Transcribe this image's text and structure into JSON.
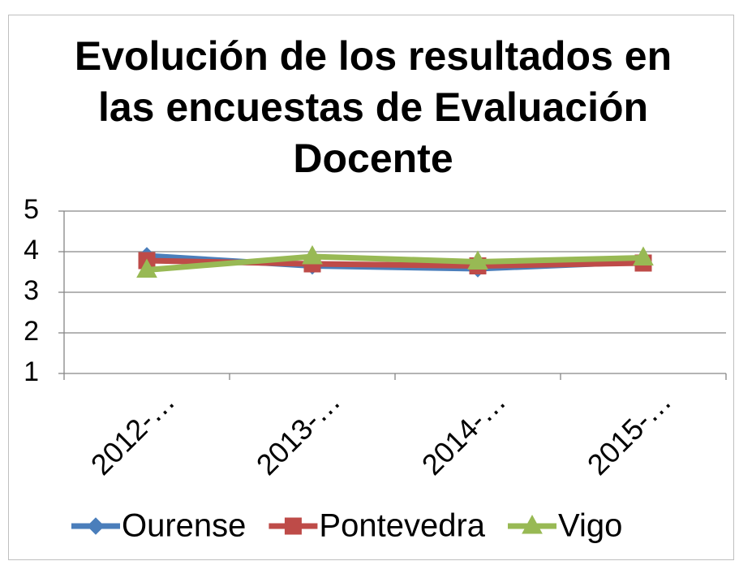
{
  "chart_data": {
    "type": "line",
    "title": "Evolución de los resultados en las encuestas de Evaluación Docente",
    "categories": [
      "2012-…",
      "2013-…",
      "2014-…",
      "2015-…"
    ],
    "series": [
      {
        "name": "Ourense",
        "color": "#4a7ebb",
        "marker": "diamond",
        "values": [
          3.9,
          3.65,
          3.58,
          3.75
        ]
      },
      {
        "name": "Pontevedra",
        "color": "#be4b48",
        "marker": "square",
        "values": [
          3.78,
          3.7,
          3.65,
          3.72
        ]
      },
      {
        "name": "Vigo",
        "color": "#98b954",
        "marker": "triangle",
        "values": [
          3.55,
          3.88,
          3.75,
          3.85
        ]
      }
    ],
    "ylim": [
      1,
      5
    ],
    "yticks": [
      1,
      2,
      3,
      4,
      5
    ],
    "grid": true,
    "legend": "bottom"
  }
}
